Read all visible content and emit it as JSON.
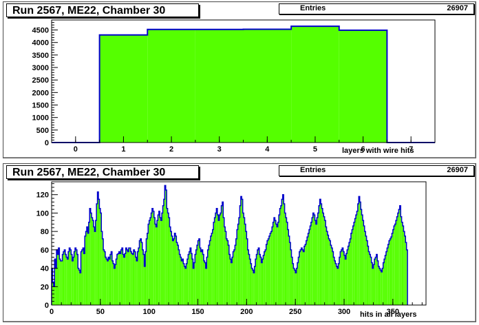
{
  "chart_data": [
    {
      "type": "bar",
      "title": "Run 2567, ME22, Chamber 30",
      "stats_label": "Entries",
      "stats_value": "26907",
      "xlabel": "layers with wire hits",
      "ylabel": "",
      "xlim": [
        -0.5,
        7.5
      ],
      "ylim": [
        0,
        4900
      ],
      "xticks": [
        0,
        1,
        2,
        3,
        4,
        5,
        6,
        7
      ],
      "yticks": [
        0,
        500,
        1000,
        1500,
        2000,
        2500,
        3000,
        3500,
        4000,
        4500
      ],
      "bins": [
        {
          "x0": -0.5,
          "x1": 0.5,
          "y": 0
        },
        {
          "x0": 0.5,
          "x1": 1.5,
          "y": 4300
        },
        {
          "x0": 1.5,
          "x1": 2.5,
          "y": 4520
        },
        {
          "x0": 2.5,
          "x1": 3.5,
          "y": 4520
        },
        {
          "x0": 3.5,
          "x1": 4.5,
          "y": 4530
        },
        {
          "x0": 4.5,
          "x1": 5.5,
          "y": 4650
        },
        {
          "x0": 5.5,
          "x1": 6.5,
          "y": 4490
        },
        {
          "x0": 6.5,
          "x1": 7.5,
          "y": 0
        }
      ],
      "fill_color": "#55ff00",
      "line_color": "#0000cc"
    },
    {
      "type": "bar",
      "title": "Run 2567, ME22, Chamber 30",
      "stats_label": "Entries",
      "stats_value": "26907",
      "xlabel": "hits in all layers",
      "ylabel": "",
      "xlim": [
        0,
        384
      ],
      "ylim": [
        0,
        134
      ],
      "xticks": [
        0,
        50,
        100,
        150,
        200,
        250,
        300,
        350
      ],
      "yticks": [
        0,
        20,
        40,
        60,
        80,
        100,
        120
      ],
      "bin_width": 1,
      "values": [
        40,
        25,
        20,
        50,
        40,
        60,
        55,
        62,
        50,
        48,
        48,
        55,
        58,
        60,
        55,
        52,
        50,
        58,
        62,
        60,
        55,
        48,
        52,
        58,
        62,
        60,
        55,
        40,
        38,
        35,
        58,
        60,
        62,
        56,
        75,
        80,
        85,
        78,
        90,
        105,
        100,
        95,
        92,
        85,
        80,
        92,
        110,
        123,
        115,
        105,
        100,
        80,
        72,
        60,
        58,
        52,
        50,
        48,
        52,
        50,
        55,
        58,
        48,
        45,
        40,
        44,
        50,
        55,
        56,
        58,
        56,
        60,
        62,
        55,
        52,
        56,
        62,
        60,
        58,
        62,
        62,
        58,
        56,
        55,
        60,
        58,
        52,
        48,
        58,
        62,
        70,
        72,
        68,
        60,
        55,
        42,
        58,
        72,
        78,
        88,
        92,
        95,
        100,
        105,
        102,
        95,
        88,
        85,
        92,
        98,
        102,
        95,
        92,
        100,
        108,
        115,
        130,
        125,
        105,
        100,
        95,
        85,
        80,
        75,
        70,
        72,
        78,
        75,
        68,
        65,
        60,
        55,
        52,
        48,
        50,
        45,
        42,
        40,
        45,
        50,
        55,
        58,
        62,
        56,
        50,
        40,
        46,
        55,
        60,
        65,
        70,
        72,
        62,
        58,
        60,
        55,
        48,
        46,
        40,
        52,
        60,
        65,
        70,
        75,
        78,
        82,
        90,
        95,
        100,
        105,
        98,
        92,
        98,
        100,
        108,
        112,
        95,
        85,
        80,
        72,
        70,
        65,
        55,
        50,
        46,
        52,
        58,
        60,
        65,
        72,
        82,
        88,
        95,
        108,
        118,
        115,
        100,
        95,
        88,
        80,
        72,
        60,
        55,
        50,
        45,
        40,
        38,
        35,
        42,
        50,
        55,
        60,
        62,
        55,
        52,
        46,
        50,
        54,
        58,
        60,
        66,
        70,
        72,
        75,
        78,
        80,
        85,
        90,
        95,
        92,
        88,
        85,
        90,
        98,
        105,
        108,
        115,
        120,
        110,
        100,
        95,
        90,
        82,
        75,
        68,
        60,
        52,
        45,
        40,
        38,
        35,
        40,
        46,
        52,
        58,
        60,
        62,
        60,
        58,
        64,
        66,
        70,
        74,
        78,
        82,
        86,
        90,
        95,
        100,
        98,
        92,
        88,
        95,
        100,
        108,
        115,
        110,
        105,
        100,
        96,
        92,
        85,
        80,
        76,
        72,
        70,
        65,
        62,
        58,
        52,
        48,
        45,
        42,
        40,
        45,
        52,
        58,
        60,
        62,
        58,
        54,
        50,
        56,
        60,
        64,
        68,
        72,
        78,
        82,
        86,
        90,
        94,
        98,
        102,
        110,
        118,
        112,
        104,
        98,
        92,
        86,
        80,
        75,
        70,
        64,
        58,
        55,
        52,
        46,
        40,
        44,
        50,
        52,
        55,
        48,
        42,
        40,
        38,
        36,
        40,
        46,
        50,
        54,
        58,
        62,
        66,
        70,
        72,
        74,
        78,
        82,
        86,
        88,
        92,
        96,
        100,
        104,
        108,
        96,
        90,
        86,
        80,
        75,
        68,
        60
      ],
      "fill_color": "#55ff00",
      "line_color": "#0000cc"
    }
  ]
}
